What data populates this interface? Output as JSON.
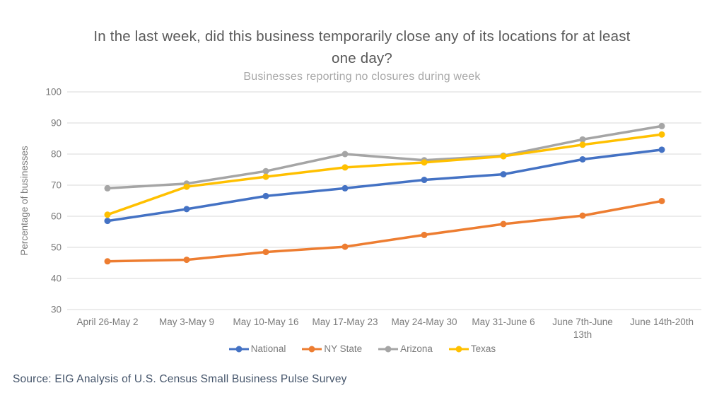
{
  "header": {
    "title_lines": [
      "In the last week, did this business temporarily close any of its locations for at least",
      "one day?"
    ],
    "subtitle": "Businesses reporting no closures during week"
  },
  "chart_data": {
    "type": "line",
    "title": "In the last week, did this business temporarily close any of its locations for at least one day?",
    "subtitle": "Businesses reporting no closures during week",
    "ylabel": "Percentage of businesses",
    "ylim": [
      30,
      100
    ],
    "ytick_step": 10,
    "grid": true,
    "legend_position": "bottom",
    "categories": [
      "April 26-May 2",
      "May 3-May 9",
      "May 10-May 16",
      "May 17-May 23",
      "May 24-May 30",
      "May 31-June 6",
      "June 7th-June 13th",
      "June 14th-20th"
    ],
    "series": [
      {
        "name": "National",
        "color": "#4472C4",
        "values": [
          58.5,
          62.3,
          66.5,
          69,
          71.7,
          73.5,
          78.3,
          81.4
        ]
      },
      {
        "name": "NY State",
        "color": "#ED7D31",
        "values": [
          45.5,
          46,
          48.5,
          50.2,
          54,
          57.5,
          60.2,
          64.9
        ]
      },
      {
        "name": "Arizona",
        "color": "#A5A5A5",
        "values": [
          69,
          70.5,
          74.5,
          80,
          78,
          79.5,
          84.7,
          89
        ]
      },
      {
        "name": "Texas",
        "color": "#FFC000",
        "values": [
          60.5,
          69.5,
          72.7,
          75.7,
          77.3,
          79.3,
          83,
          86.3
        ]
      }
    ]
  },
  "footer": {
    "source": "Source: EIG Analysis of U.S. Census Small Business Pulse Survey"
  },
  "colors": {
    "grid": "#D9D9D9",
    "axis_text": "#7B7B7B",
    "title": "#595959",
    "subtitle": "#A8A8A8",
    "source": "#44546A"
  }
}
